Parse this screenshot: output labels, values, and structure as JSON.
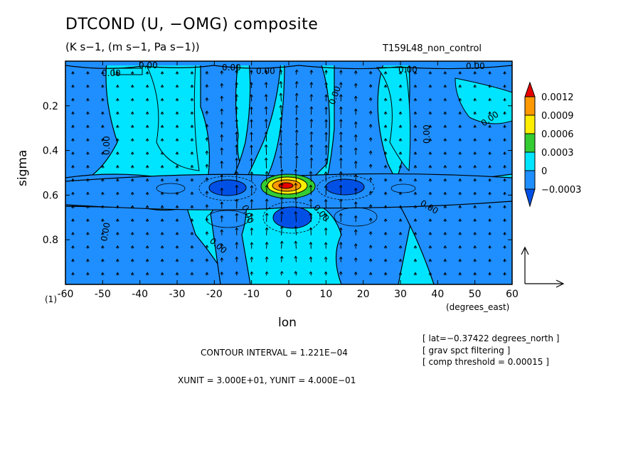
{
  "header": {
    "title": "DTCOND (U, −OMG) composite",
    "units": "(K s−1, (m s−1, Pa s−1))",
    "run": "T159L48_non_control"
  },
  "axes": {
    "ylabel": "sigma",
    "xlabel": "lon",
    "xunits": "(degrees_east)",
    "corner": "(1)"
  },
  "footer": {
    "contour_interval": "CONTOUR INTERVAL = 1.221E−04",
    "xyunit": "XUNIT = 3.000E+01, YUNIT = 4.000E−01",
    "info_lat": "[ lat=−0.37422 degrees_north ]",
    "info_filter": "[ grav spct filtering ]",
    "info_threshold": "[ comp threshold = 0.00015 ]"
  },
  "chart_data": {
    "type": "heatmap",
    "x_ticks": [
      -60,
      -50,
      -40,
      -30,
      -20,
      -10,
      0,
      10,
      20,
      30,
      40,
      50,
      60
    ],
    "y_ticks": [
      0.2,
      0.4,
      0.6,
      0.8
    ],
    "xlim": [
      -60,
      60
    ],
    "ylim": [
      0.0,
      1.0
    ],
    "y_inverted": true,
    "colorbar": {
      "levels": [
        "0.0012",
        "0.0009",
        "0.0006",
        "0.0003",
        "0",
        "−0.0003"
      ],
      "colors": [
        "#e60000",
        "#ff9900",
        "#ffee00",
        "#33cc33",
        "#00e5ff",
        "#1f8fff",
        "#0050e6"
      ]
    },
    "contour_labels": [
      "0.00"
    ],
    "anomalies": [
      {
        "lon": 0,
        "sigma": 0.56,
        "sign": "positive",
        "peak": 0.0012
      },
      {
        "lon": -18,
        "sigma": 0.58,
        "sign": "negative"
      },
      {
        "lon": 16,
        "sigma": 0.57,
        "sign": "negative"
      },
      {
        "lon": 1,
        "sigma": 0.7,
        "sign": "negative"
      }
    ],
    "grid": false,
    "reference_vector": {
      "xunit": "3.000E+01",
      "yunit": "4.000E-01"
    }
  }
}
